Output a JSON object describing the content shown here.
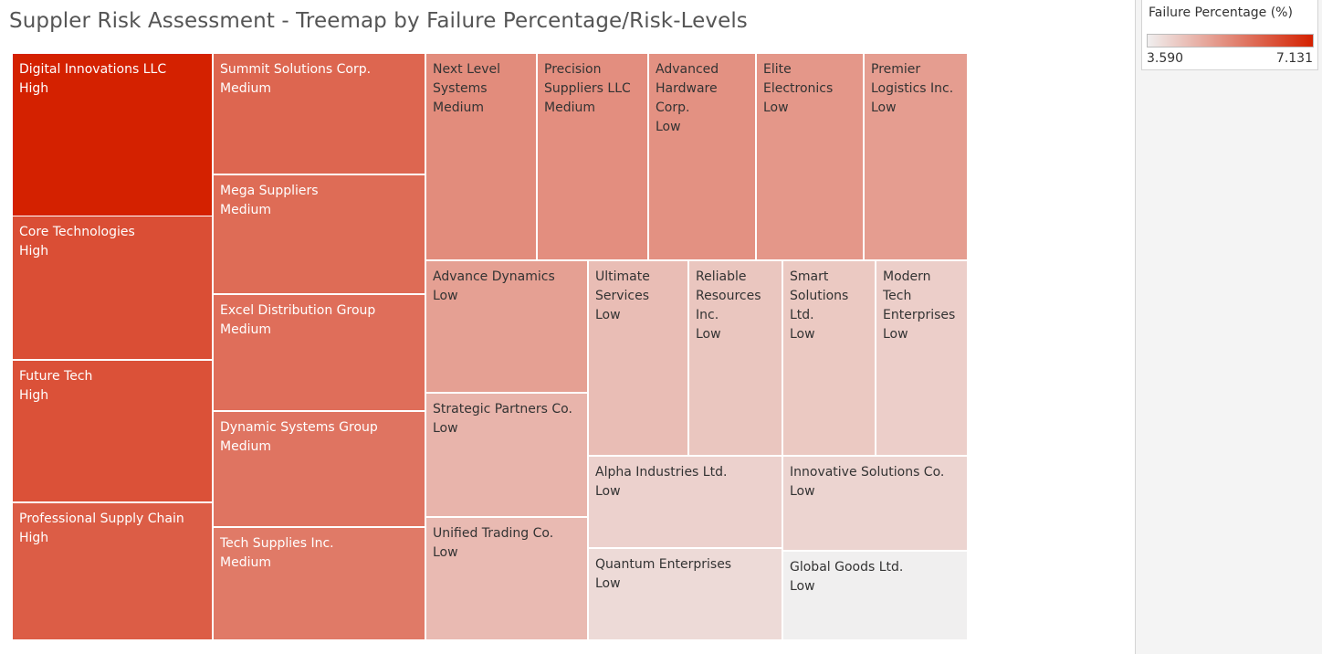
{
  "title": "Suppler Risk Assessment - Treemap by Failure Percentage/Risk-Levels",
  "legend": {
    "title": "Failure Percentage (%)",
    "min_label": "3.590",
    "max_label": "7.131",
    "color_low": "#f0efef",
    "color_high": "#d42100"
  },
  "chart_data": {
    "type": "treemap",
    "title": "Suppler Risk Assessment - Treemap by Failure Percentage/Risk-Levels",
    "size_and_color_measure": "Failure Percentage (%)",
    "range": [
      3.59,
      7.131
    ],
    "items": [
      {
        "name": "Digital Innovations LLC",
        "risk": "High",
        "value": 7.131
      },
      {
        "name": "Core Technologies",
        "risk": "High",
        "value": 6.35
      },
      {
        "name": "Future Tech",
        "risk": "High",
        "value": 6.3
      },
      {
        "name": "Professional Supply Chain",
        "risk": "High",
        "value": 6.1
      },
      {
        "name": "Summit Solutions Corp.",
        "risk": "Medium",
        "value": 5.95
      },
      {
        "name": "Mega Suppliers",
        "risk": "Medium",
        "value": 5.85
      },
      {
        "name": "Excel Distribution Group",
        "risk": "Medium",
        "value": 5.8
      },
      {
        "name": "Dynamic Systems Group",
        "risk": "Medium",
        "value": 5.7
      },
      {
        "name": "Tech Supplies Inc.",
        "risk": "Medium",
        "value": 5.6
      },
      {
        "name": "Next Level Systems",
        "risk": "Medium",
        "value": 5.3
      },
      {
        "name": "Precision Suppliers LLC",
        "risk": "Medium",
        "value": 5.25
      },
      {
        "name": "Advanced Hardware Corp.",
        "risk": "Low",
        "value": 5.2
      },
      {
        "name": "Elite Electronics",
        "risk": "Low",
        "value": 5.1
      },
      {
        "name": "Premier Logistics Inc.",
        "risk": "Low",
        "value": 5.0
      },
      {
        "name": "Advance Dynamics",
        "risk": "Low",
        "value": 4.95
      },
      {
        "name": "Strategic Partners Co.",
        "risk": "Low",
        "value": 4.6
      },
      {
        "name": "Unified Trading Co.",
        "risk": "Low",
        "value": 4.5
      },
      {
        "name": "Ultimate Services",
        "risk": "Low",
        "value": 4.45
      },
      {
        "name": "Reliable Resources Inc.",
        "risk": "Low",
        "value": 4.3
      },
      {
        "name": "Smart Solutions Ltd.",
        "risk": "Low",
        "value": 4.25
      },
      {
        "name": "Modern Tech Enterprises",
        "risk": "Low",
        "value": 4.15
      },
      {
        "name": "Alpha Industries Ltd.",
        "risk": "Low",
        "value": 4.1
      },
      {
        "name": "Innovative Solutions Co.",
        "risk": "Low",
        "value": 4.05
      },
      {
        "name": "Quantum Enterprises",
        "risk": "Low",
        "value": 3.95
      },
      {
        "name": "Global Goods Ltd.",
        "risk": "Low",
        "value": 3.59
      }
    ]
  }
}
